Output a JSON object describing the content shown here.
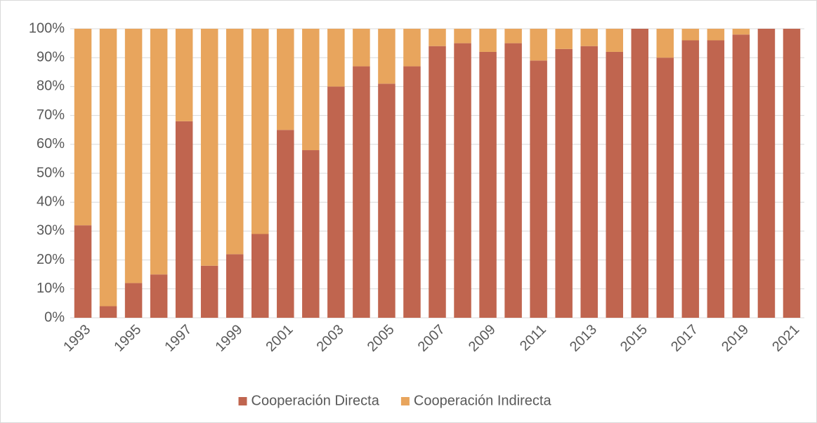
{
  "chart_data": {
    "type": "stacked_bar",
    "categories": [
      "1993",
      null,
      "1995",
      null,
      "1997",
      null,
      "1999",
      null,
      "2001",
      null,
      "2003",
      null,
      "2005",
      null,
      "2007",
      null,
      "2009",
      null,
      "2011",
      null,
      "2013",
      null,
      "2015",
      null,
      "2017",
      null,
      "2019",
      null,
      "2021"
    ],
    "series": [
      {
        "name": "Cooperación Directa",
        "color": "#c0654f",
        "values": [
          32,
          4,
          12,
          15,
          68,
          18,
          22,
          29,
          65,
          58,
          80,
          87,
          81,
          87,
          94,
          95,
          92,
          95,
          89,
          93,
          94,
          92,
          100,
          90,
          96,
          96,
          98,
          100,
          100
        ]
      },
      {
        "name": "Cooperación Indirecta",
        "color": "#e8a55d",
        "values": [
          68,
          96,
          88,
          85,
          32,
          82,
          78,
          71,
          35,
          42,
          20,
          13,
          19,
          13,
          6,
          5,
          8,
          5,
          11,
          7,
          6,
          8,
          0,
          10,
          4,
          4,
          2,
          0,
          0
        ]
      }
    ],
    "ylim": [
      0,
      100
    ],
    "yticks": [
      {
        "value": 0,
        "label": "0%"
      },
      {
        "value": 10,
        "label": "10%"
      },
      {
        "value": 20,
        "label": "20%"
      },
      {
        "value": 30,
        "label": "30%"
      },
      {
        "value": 40,
        "label": "40%"
      },
      {
        "value": 50,
        "label": "50%"
      },
      {
        "value": 60,
        "label": "60%"
      },
      {
        "value": 70,
        "label": "70%"
      },
      {
        "value": 80,
        "label": "80%"
      },
      {
        "value": 90,
        "label": "90%"
      },
      {
        "value": 100,
        "label": "100%"
      }
    ],
    "grid": true,
    "legend": "bottom"
  }
}
